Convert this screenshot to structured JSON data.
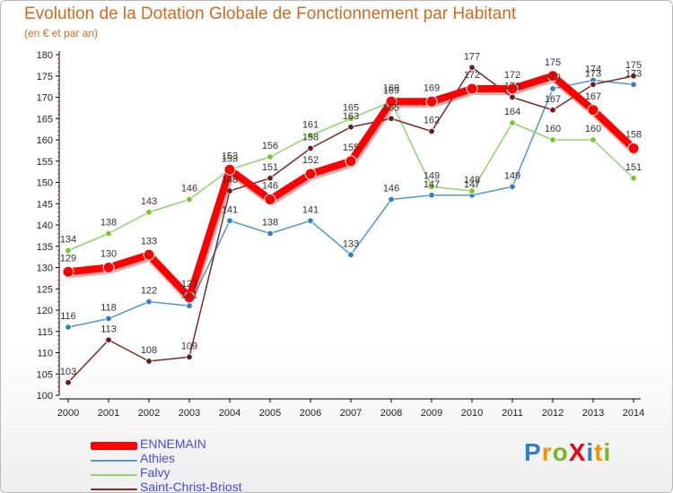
{
  "header": {
    "title": "Evolution de la Dotation Globale de Fonctionnement par Habitant",
    "subtitle": "(en € et par an)"
  },
  "brand": {
    "logo_text": "ProXiti",
    "letters": [
      {
        "ch": "P",
        "color": "#2e7fc4"
      },
      {
        "ch": "r",
        "color": "#f29400"
      },
      {
        "ch": "o",
        "color": "#79b51c"
      },
      {
        "ch": "X",
        "color": "#e30613"
      },
      {
        "ch": "i",
        "color": "#2e7fc4"
      },
      {
        "ch": "t",
        "color": "#f29400"
      },
      {
        "ch": "i",
        "color": "#79b51c"
      }
    ]
  },
  "chart_data": {
    "type": "line",
    "title": "Evolution de la Dotation Globale de Fonctionnement par Habitant",
    "subtitle": "(en € et par an)",
    "xlabel": "",
    "ylabel": "",
    "x": [
      "2000",
      "2001",
      "2002",
      "2003",
      "2004",
      "2005",
      "2006",
      "2007",
      "2008",
      "2009",
      "2010",
      "2011",
      "2012",
      "2013",
      "2014"
    ],
    "ylim": [
      100,
      180
    ],
    "yticks": [
      100,
      105,
      110,
      115,
      120,
      125,
      130,
      135,
      140,
      145,
      150,
      155,
      160,
      165,
      170,
      175,
      180
    ],
    "grid": false,
    "legend_position": "bottom-left",
    "series": [
      {
        "name": "Athies",
        "color": "#4f97d0",
        "marker": "#2e7fc4",
        "emphasis": false,
        "values": [
          116,
          118,
          122,
          121,
          141,
          138,
          141,
          133,
          146,
          147,
          147,
          149,
          172,
          174,
          173
        ],
        "labels": [
          "116",
          "118",
          "122",
          "121",
          "141",
          "138",
          "141",
          "133",
          "146",
          "147",
          "147",
          "149",
          "172",
          "174",
          "173"
        ]
      },
      {
        "name": "Falvy",
        "color": "#8ed46c",
        "marker": "#79c62c",
        "emphasis": false,
        "values": [
          134,
          138,
          143,
          146,
          153,
          156,
          161,
          165,
          169,
          149,
          148,
          164,
          160,
          160,
          151
        ],
        "labels": [
          "134",
          "138",
          "143",
          "146",
          "153",
          "156",
          "161",
          "165",
          "169",
          "149",
          "148",
          "164",
          "160",
          "160",
          "151"
        ]
      },
      {
        "name": "Saint-Christ-Briost",
        "color": "#7a2a2a",
        "marker": "#6b1b1b",
        "emphasis": false,
        "values": [
          103,
          113,
          108,
          109,
          148,
          151,
          158,
          163,
          165,
          162,
          177,
          170,
          167,
          173,
          175
        ],
        "labels": [
          "103",
          "113",
          "108",
          "109",
          "148",
          "151",
          "158",
          "163",
          "165",
          "162",
          "177",
          "170",
          "167",
          "173",
          "175"
        ]
      },
      {
        "name": "ENNEMAIN",
        "color": "#ff0000",
        "marker": "#ff0000",
        "emphasis": true,
        "values": [
          129,
          130,
          133,
          123,
          153,
          146,
          152,
          155,
          169,
          169,
          172,
          172,
          175,
          167,
          158
        ],
        "labels": [
          "129",
          "130",
          "133",
          "123",
          "153",
          "146",
          "152",
          "155",
          "169",
          "169",
          "172",
          "172",
          "175",
          "167",
          "158"
        ]
      }
    ]
  }
}
